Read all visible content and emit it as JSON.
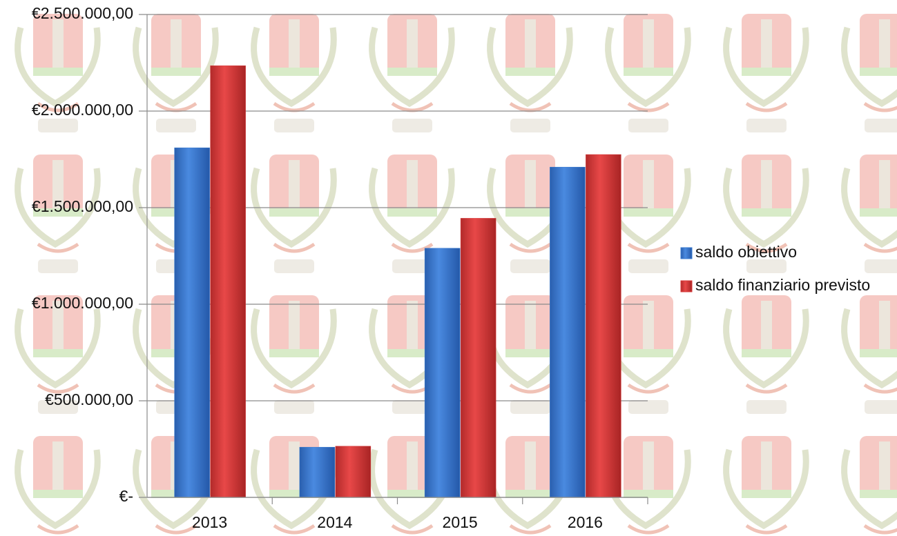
{
  "chart_data": {
    "type": "bar",
    "categories": [
      "2013",
      "2014",
      "2015",
      "2016"
    ],
    "series": [
      {
        "name": "saldo obiettivo",
        "color": "#3a7bd0",
        "values": [
          1810000,
          260000,
          1290000,
          1710000
        ]
      },
      {
        "name": "saldo finanziario previsto",
        "color": "#d83a3a",
        "values": [
          2235000,
          265000,
          1445000,
          1775000
        ]
      }
    ],
    "ylim": [
      0,
      2500000
    ],
    "yticks": [
      {
        "value": 0,
        "label": "€-"
      },
      {
        "value": 500000,
        "label": "€500.000,00"
      },
      {
        "value": 1000000,
        "label": "€1.000.000,00"
      },
      {
        "value": 1500000,
        "label": "€1.500.000,00"
      },
      {
        "value": 2000000,
        "label": "€2.000.000,00"
      },
      {
        "value": 2500000,
        "label": "€2.500.000,00"
      }
    ],
    "grid": true,
    "legend": "right"
  }
}
